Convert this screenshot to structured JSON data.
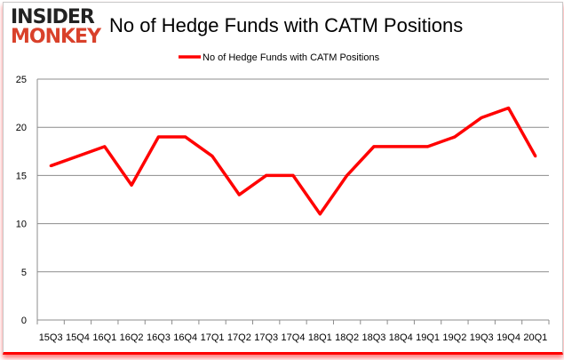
{
  "logo": {
    "line1": "INSIDER",
    "line2": "MONKEY"
  },
  "chart_data": {
    "type": "line",
    "title": "No of Hedge Funds with CATM Positions",
    "legend": {
      "position": "top",
      "entries": [
        "No of Hedge Funds with CATM Positions"
      ]
    },
    "categories": [
      "15Q3",
      "15Q4",
      "16Q1",
      "16Q2",
      "16Q3",
      "16Q4",
      "17Q1",
      "17Q2",
      "17Q3",
      "17Q4",
      "18Q1",
      "18Q2",
      "18Q3",
      "18Q4",
      "19Q1",
      "19Q2",
      "19Q3",
      "19Q4",
      "20Q1"
    ],
    "series": [
      {
        "name": "No of Hedge Funds with CATM Positions",
        "color": "#ff0000",
        "values": [
          16,
          17,
          18,
          14,
          19,
          19,
          17,
          13,
          15,
          15,
          11,
          15,
          18,
          18,
          18,
          19,
          21,
          22,
          17
        ]
      }
    ],
    "ylim": [
      0,
      25
    ],
    "yticks": [
      0,
      5,
      10,
      15,
      20,
      25
    ],
    "grid": true
  }
}
